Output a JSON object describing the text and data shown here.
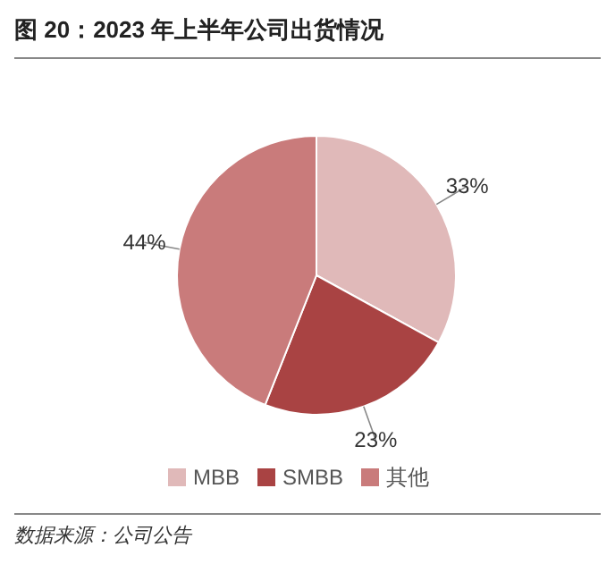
{
  "chart_data": {
    "type": "pie",
    "title": "图 20：2023 年上半年公司出货情况",
    "categories": [
      "MBB",
      "SMBB",
      "其他"
    ],
    "values": [
      33,
      23,
      44
    ],
    "value_labels": [
      "33%",
      "23%",
      "44%"
    ],
    "colors": [
      "#e0b9b9",
      "#a94343",
      "#c97b7b"
    ],
    "legend": "bottom",
    "annotations": [
      "数据来源：公司公告"
    ]
  }
}
